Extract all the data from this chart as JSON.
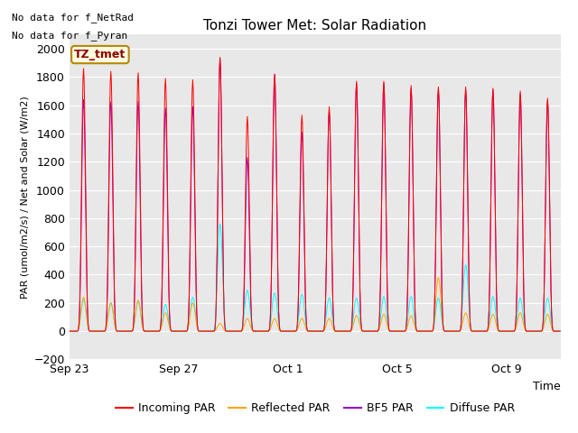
{
  "title": "Tonzi Tower Met: Solar Radiation",
  "xlabel": "Time",
  "ylabel": "PAR (umol/m2/s) / Net and Solar (W/m2)",
  "ylim": [
    -200,
    2100
  ],
  "yticks": [
    -200,
    0,
    200,
    400,
    600,
    800,
    1000,
    1200,
    1400,
    1600,
    1800,
    2000
  ],
  "note1": "No data for f_NetRad",
  "note2": "No data for f_Pyran",
  "legend_label": "TZ_tmet",
  "colors": {
    "incoming": "#FF0000",
    "reflected": "#FFA500",
    "bfs": "#9900CC",
    "diffuse": "#00FFFF"
  },
  "legend_entries": [
    "Incoming PAR",
    "Reflected PAR",
    "BF5 PAR",
    "Diffuse PAR"
  ],
  "x_tick_labels": [
    "Sep 23",
    "Sep 27",
    "Oct 1",
    "Oct 5",
    "Oct 9"
  ],
  "fig_bg": "#FFFFFF",
  "plot_bg": "#E8E8E8",
  "grid_color": "#FFFFFF"
}
